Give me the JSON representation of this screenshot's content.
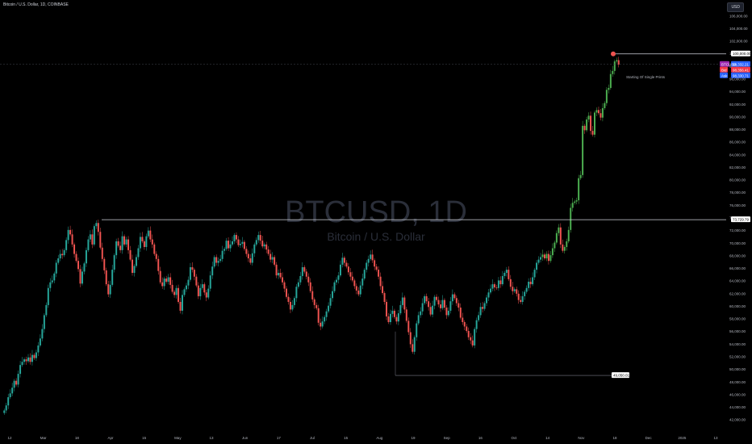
{
  "header": {
    "title": "Bitcoin / U.S. Dollar, 1D, COINBASE",
    "currency_button": "USD"
  },
  "watermark": {
    "symbol": "BTCUSD, 1D",
    "name": "Bitcoin / U.S. Dollar"
  },
  "annotation": "Starting Of Single Prints",
  "price_tags": {
    "high": "100,000.00",
    "current": "98,332.21",
    "bid": "98,356.41",
    "ask": "98,330.71",
    "btc_tag": "BTCUSD",
    "bid_tag": "Bid",
    "ask_tag": "Ask",
    "level_73k": "73,729.79",
    "level_49k": "49,050.01"
  },
  "price_axis": [
    "106,000.00",
    "104,000.00",
    "102,000.00",
    "100,000.00",
    "98,000.00",
    "96,000.00",
    "94,000.00",
    "92,000.00",
    "90,000.00",
    "88,000.00",
    "86,000.00",
    "84,000.00",
    "82,000.00",
    "80,000.00",
    "78,000.00",
    "76,000.00",
    "74,000.00",
    "72,000.00",
    "70,000.00",
    "68,000.00",
    "66,000.00",
    "64,000.00",
    "62,000.00",
    "60,000.00",
    "58,000.00",
    "56,000.00",
    "54,000.00",
    "52,000.00",
    "50,000.00",
    "48,000.00",
    "46,000.00",
    "44,000.00",
    "42,000.00"
  ],
  "time_axis": [
    "12",
    "Mar",
    "18",
    "Apr",
    "15",
    "May",
    "13",
    "Jun",
    "17",
    "Jul",
    "15",
    "Aug",
    "19",
    "Sep",
    "16",
    "Oct",
    "14",
    "Nov",
    "18",
    "Dec",
    "2025",
    "13"
  ],
  "colors": {
    "up": "#26a69a",
    "up_bright": "#4caf50",
    "down": "#ef5350",
    "line": "#d1d4dc",
    "background": "#000000"
  },
  "chart_data": {
    "type": "candlestick",
    "ylim": [
      41000,
      107000
    ],
    "levels": [
      100000,
      73729.79,
      49050.01
    ],
    "closes": [
      43500,
      44300,
      45600,
      46200,
      47100,
      48200,
      47600,
      49300,
      50700,
      51200,
      51600,
      51300,
      51900,
      51200,
      52300,
      51800,
      52700,
      53800,
      54900,
      56400,
      58600,
      60200,
      62900,
      63800,
      64100,
      65200,
      66900,
      67600,
      68300,
      68100,
      68900,
      70500,
      72100,
      71400,
      69800,
      68300,
      67200,
      65900,
      63600,
      65500,
      66800,
      68900,
      70600,
      71400,
      69800,
      72700,
      73200,
      71800,
      69300,
      67500,
      65700,
      63500,
      61900,
      63400,
      65800,
      68100,
      70300,
      69600,
      68900,
      71100,
      69800,
      70600,
      68900,
      67400,
      65300,
      66400,
      67800,
      69200,
      71000,
      70300,
      69400,
      71100,
      72000,
      70600,
      69800,
      68300,
      67500,
      65600,
      63800,
      63200,
      64400,
      63900,
      64600,
      63400,
      62300,
      61800,
      62900,
      60700,
      59300,
      61800,
      62700,
      63300,
      64200,
      66200,
      65800,
      64700,
      63300,
      61600,
      62900,
      63500,
      62200,
      61400,
      62800,
      64900,
      66300,
      67800,
      66900,
      67200,
      67500,
      68800,
      69100,
      70400,
      69200,
      69800,
      70300,
      71300,
      70600,
      69700,
      69900,
      70200,
      69100,
      68300,
      67600,
      66900,
      68400,
      69800,
      70500,
      71300,
      70400,
      69500,
      69800,
      69000,
      68300,
      67400,
      67800,
      66600,
      64900,
      65300,
      64600,
      63800,
      62800,
      61500,
      60700,
      59500,
      60200,
      61300,
      63100,
      63800,
      64800,
      66200,
      65500,
      64700,
      63800,
      62400,
      61100,
      60200,
      59700,
      57400,
      56800,
      57600,
      58300,
      59200,
      60100,
      61300,
      62400,
      63800,
      64200,
      64900,
      66600,
      67700,
      66900,
      66300,
      65400,
      64700,
      64100,
      63200,
      62500,
      61900,
      63300,
      64400,
      65800,
      66900,
      67500,
      68200,
      67300,
      66300,
      65800,
      64700,
      63200,
      62100,
      60700,
      58400,
      57500,
      58800,
      59300,
      58300,
      57600,
      58900,
      60200,
      61400,
      59500,
      57700,
      55900,
      54000,
      52800,
      55100,
      57300,
      58600,
      59200,
      60500,
      61600,
      60800,
      59900,
      58700,
      60100,
      61500,
      61000,
      60300,
      59700,
      61000,
      59800,
      58600,
      59300,
      60800,
      61900,
      61300,
      60500,
      59800,
      58200,
      57500,
      56800,
      56100,
      55100,
      54600,
      53800,
      56400,
      57800,
      58600,
      59900,
      59600,
      60500,
      61400,
      62200,
      62800,
      63500,
      63000,
      62900,
      64100,
      63500,
      64800,
      65300,
      65800,
      64300,
      63100,
      62400,
      62700,
      62000,
      61000,
      60700,
      61600,
      62300,
      62900,
      63900,
      63500,
      64600,
      65800,
      66900,
      67400,
      67800,
      68200,
      67600,
      68300,
      67200,
      68100,
      69200,
      70100,
      71600,
      72500,
      69800,
      68800,
      69400,
      70300,
      72100,
      75600,
      76400,
      76600,
      76800,
      80300,
      80800,
      88600,
      87900,
      89600,
      90200,
      87800,
      87200,
      90700,
      91100,
      90600,
      89900,
      91400,
      92200,
      94300,
      94600,
      96800,
      97300,
      98800,
      99000,
      98300
    ]
  }
}
